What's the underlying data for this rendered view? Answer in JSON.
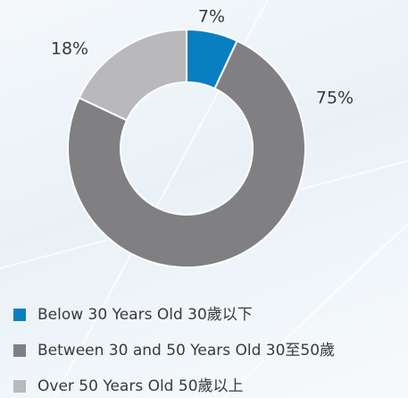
{
  "chart_data": {
    "type": "pie",
    "donut": true,
    "categories": [
      "Below 30 Years Old 30歲以下",
      "Between 30 and 50 Years Old 30至50歲",
      "Over 50 Years Old 50歲以上"
    ],
    "values": [
      7,
      75,
      18
    ],
    "value_labels": [
      "7%",
      "75%",
      "18%"
    ],
    "colors": [
      "#0a7fc0",
      "#808083",
      "#b9b9bc"
    ]
  }
}
